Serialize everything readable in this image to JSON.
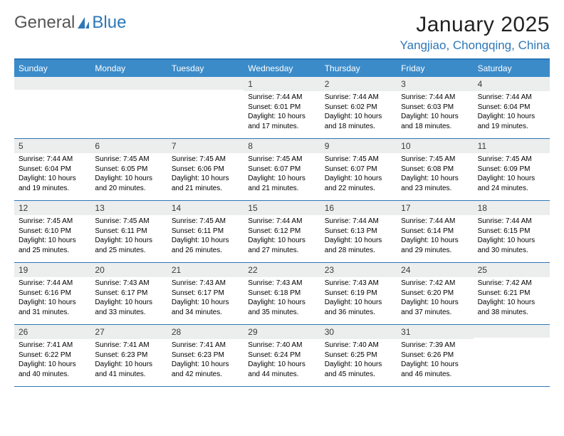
{
  "logo": {
    "text1": "General",
    "text2": "Blue"
  },
  "title": "January 2025",
  "location": "Yangjiao, Chongqing, China",
  "weekdays": [
    "Sunday",
    "Monday",
    "Tuesday",
    "Wednesday",
    "Thursday",
    "Friday",
    "Saturday"
  ],
  "colors": {
    "accent": "#2d77b8",
    "header_bg": "#3b8bc9",
    "daynum_bg": "#eceded",
    "text": "#000000",
    "title": "#222222"
  },
  "weeks": [
    [
      {
        "n": "",
        "sr": "",
        "ss": "",
        "dl": ""
      },
      {
        "n": "",
        "sr": "",
        "ss": "",
        "dl": ""
      },
      {
        "n": "",
        "sr": "",
        "ss": "",
        "dl": ""
      },
      {
        "n": "1",
        "sr": "Sunrise: 7:44 AM",
        "ss": "Sunset: 6:01 PM",
        "dl": "Daylight: 10 hours and 17 minutes."
      },
      {
        "n": "2",
        "sr": "Sunrise: 7:44 AM",
        "ss": "Sunset: 6:02 PM",
        "dl": "Daylight: 10 hours and 18 minutes."
      },
      {
        "n": "3",
        "sr": "Sunrise: 7:44 AM",
        "ss": "Sunset: 6:03 PM",
        "dl": "Daylight: 10 hours and 18 minutes."
      },
      {
        "n": "4",
        "sr": "Sunrise: 7:44 AM",
        "ss": "Sunset: 6:04 PM",
        "dl": "Daylight: 10 hours and 19 minutes."
      }
    ],
    [
      {
        "n": "5",
        "sr": "Sunrise: 7:44 AM",
        "ss": "Sunset: 6:04 PM",
        "dl": "Daylight: 10 hours and 19 minutes."
      },
      {
        "n": "6",
        "sr": "Sunrise: 7:45 AM",
        "ss": "Sunset: 6:05 PM",
        "dl": "Daylight: 10 hours and 20 minutes."
      },
      {
        "n": "7",
        "sr": "Sunrise: 7:45 AM",
        "ss": "Sunset: 6:06 PM",
        "dl": "Daylight: 10 hours and 21 minutes."
      },
      {
        "n": "8",
        "sr": "Sunrise: 7:45 AM",
        "ss": "Sunset: 6:07 PM",
        "dl": "Daylight: 10 hours and 21 minutes."
      },
      {
        "n": "9",
        "sr": "Sunrise: 7:45 AM",
        "ss": "Sunset: 6:07 PM",
        "dl": "Daylight: 10 hours and 22 minutes."
      },
      {
        "n": "10",
        "sr": "Sunrise: 7:45 AM",
        "ss": "Sunset: 6:08 PM",
        "dl": "Daylight: 10 hours and 23 minutes."
      },
      {
        "n": "11",
        "sr": "Sunrise: 7:45 AM",
        "ss": "Sunset: 6:09 PM",
        "dl": "Daylight: 10 hours and 24 minutes."
      }
    ],
    [
      {
        "n": "12",
        "sr": "Sunrise: 7:45 AM",
        "ss": "Sunset: 6:10 PM",
        "dl": "Daylight: 10 hours and 25 minutes."
      },
      {
        "n": "13",
        "sr": "Sunrise: 7:45 AM",
        "ss": "Sunset: 6:11 PM",
        "dl": "Daylight: 10 hours and 25 minutes."
      },
      {
        "n": "14",
        "sr": "Sunrise: 7:45 AM",
        "ss": "Sunset: 6:11 PM",
        "dl": "Daylight: 10 hours and 26 minutes."
      },
      {
        "n": "15",
        "sr": "Sunrise: 7:44 AM",
        "ss": "Sunset: 6:12 PM",
        "dl": "Daylight: 10 hours and 27 minutes."
      },
      {
        "n": "16",
        "sr": "Sunrise: 7:44 AM",
        "ss": "Sunset: 6:13 PM",
        "dl": "Daylight: 10 hours and 28 minutes."
      },
      {
        "n": "17",
        "sr": "Sunrise: 7:44 AM",
        "ss": "Sunset: 6:14 PM",
        "dl": "Daylight: 10 hours and 29 minutes."
      },
      {
        "n": "18",
        "sr": "Sunrise: 7:44 AM",
        "ss": "Sunset: 6:15 PM",
        "dl": "Daylight: 10 hours and 30 minutes."
      }
    ],
    [
      {
        "n": "19",
        "sr": "Sunrise: 7:44 AM",
        "ss": "Sunset: 6:16 PM",
        "dl": "Daylight: 10 hours and 31 minutes."
      },
      {
        "n": "20",
        "sr": "Sunrise: 7:43 AM",
        "ss": "Sunset: 6:17 PM",
        "dl": "Daylight: 10 hours and 33 minutes."
      },
      {
        "n": "21",
        "sr": "Sunrise: 7:43 AM",
        "ss": "Sunset: 6:17 PM",
        "dl": "Daylight: 10 hours and 34 minutes."
      },
      {
        "n": "22",
        "sr": "Sunrise: 7:43 AM",
        "ss": "Sunset: 6:18 PM",
        "dl": "Daylight: 10 hours and 35 minutes."
      },
      {
        "n": "23",
        "sr": "Sunrise: 7:43 AM",
        "ss": "Sunset: 6:19 PM",
        "dl": "Daylight: 10 hours and 36 minutes."
      },
      {
        "n": "24",
        "sr": "Sunrise: 7:42 AM",
        "ss": "Sunset: 6:20 PM",
        "dl": "Daylight: 10 hours and 37 minutes."
      },
      {
        "n": "25",
        "sr": "Sunrise: 7:42 AM",
        "ss": "Sunset: 6:21 PM",
        "dl": "Daylight: 10 hours and 38 minutes."
      }
    ],
    [
      {
        "n": "26",
        "sr": "Sunrise: 7:41 AM",
        "ss": "Sunset: 6:22 PM",
        "dl": "Daylight: 10 hours and 40 minutes."
      },
      {
        "n": "27",
        "sr": "Sunrise: 7:41 AM",
        "ss": "Sunset: 6:23 PM",
        "dl": "Daylight: 10 hours and 41 minutes."
      },
      {
        "n": "28",
        "sr": "Sunrise: 7:41 AM",
        "ss": "Sunset: 6:23 PM",
        "dl": "Daylight: 10 hours and 42 minutes."
      },
      {
        "n": "29",
        "sr": "Sunrise: 7:40 AM",
        "ss": "Sunset: 6:24 PM",
        "dl": "Daylight: 10 hours and 44 minutes."
      },
      {
        "n": "30",
        "sr": "Sunrise: 7:40 AM",
        "ss": "Sunset: 6:25 PM",
        "dl": "Daylight: 10 hours and 45 minutes."
      },
      {
        "n": "31",
        "sr": "Sunrise: 7:39 AM",
        "ss": "Sunset: 6:26 PM",
        "dl": "Daylight: 10 hours and 46 minutes."
      },
      {
        "n": "",
        "sr": "",
        "ss": "",
        "dl": ""
      }
    ]
  ]
}
